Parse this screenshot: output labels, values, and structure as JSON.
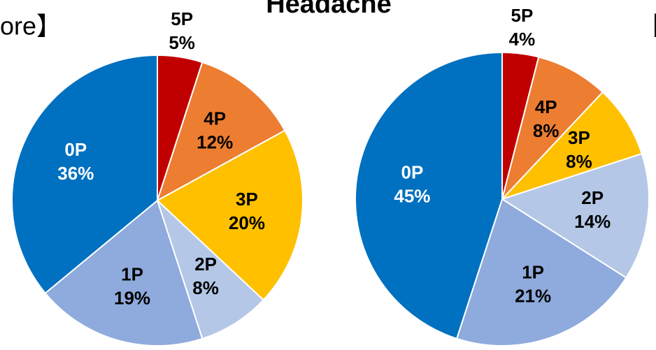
{
  "title": "Headache",
  "chart_data": [
    {
      "type": "pie",
      "title": "ore】",
      "categories": [
        "5P",
        "4P",
        "3P",
        "2P",
        "1P",
        "0P"
      ],
      "values": [
        5,
        12,
        20,
        8,
        19,
        36
      ],
      "value_labels": [
        "5%",
        "12%",
        "20%",
        "8%",
        "19%",
        "36%"
      ],
      "colors": [
        "#c00000",
        "#ed7d31",
        "#ffc000",
        "#b4c7e7",
        "#8faadc",
        "#0070c0"
      ]
    },
    {
      "type": "pie",
      "title": "【",
      "categories": [
        "5P",
        "4P",
        "3P",
        "2P",
        "1P",
        "0P"
      ],
      "values": [
        4,
        8,
        8,
        14,
        21,
        45
      ],
      "value_labels": [
        "4%",
        "8%",
        "8%",
        "14%",
        "21%",
        "45%"
      ],
      "colors": [
        "#c00000",
        "#ed7d31",
        "#ffc000",
        "#b4c7e7",
        "#8faadc",
        "#0070c0"
      ]
    }
  ]
}
